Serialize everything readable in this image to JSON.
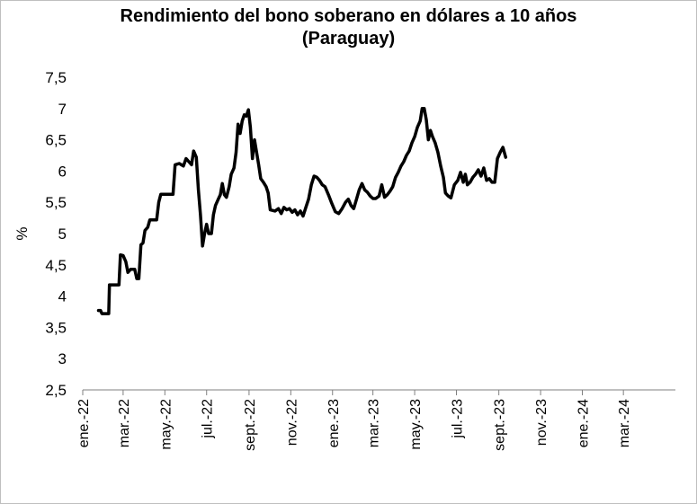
{
  "chart_data": {
    "type": "line",
    "title": "Rendimiento del bono soberano en dólares a 10 años",
    "subtitle": "(Paraguay)",
    "xlabel": "",
    "ylabel": "%",
    "ylim": [
      2.5,
      7.5
    ],
    "yticks": [
      "2,5",
      "3",
      "3,5",
      "4",
      "4,5",
      "5",
      "5,5",
      "6",
      "6,5",
      "7",
      "7,5"
    ],
    "xlim": [
      "2022-01-01",
      "2024-05-16"
    ],
    "xticks": [
      {
        "date": "2022-01-01",
        "label": "ene.-22"
      },
      {
        "date": "2022-03-01",
        "label": "mar.-22"
      },
      {
        "date": "2022-05-01",
        "label": "may.-22"
      },
      {
        "date": "2022-07-01",
        "label": "jul.-22"
      },
      {
        "date": "2022-09-01",
        "label": "sept.-22"
      },
      {
        "date": "2022-11-01",
        "label": "nov.-22"
      },
      {
        "date": "2023-01-01",
        "label": "ene.-23"
      },
      {
        "date": "2023-03-01",
        "label": "mar.-23"
      },
      {
        "date": "2023-05-01",
        "label": "may.-23"
      },
      {
        "date": "2023-07-01",
        "label": "jul.-23"
      },
      {
        "date": "2023-09-01",
        "label": "sept.-23"
      },
      {
        "date": "2023-11-01",
        "label": "nov.-23"
      },
      {
        "date": "2024-01-01",
        "label": "ene.-24"
      },
      {
        "date": "2024-03-01",
        "label": "mar.-24"
      }
    ],
    "grid": false,
    "legend": "none",
    "series": [
      {
        "color": "#000000",
        "points": [
          [
            "2022-01-24",
            3.77
          ],
          [
            "2022-01-27",
            3.77
          ],
          [
            "2022-01-29",
            3.72
          ],
          [
            "2022-02-08",
            3.72
          ],
          [
            "2022-02-09",
            4.18
          ],
          [
            "2022-02-23",
            4.18
          ],
          [
            "2022-02-25",
            4.66
          ],
          [
            "2022-03-01",
            4.65
          ],
          [
            "2022-03-05",
            4.55
          ],
          [
            "2022-03-08",
            4.38
          ],
          [
            "2022-03-12",
            4.43
          ],
          [
            "2022-03-18",
            4.43
          ],
          [
            "2022-03-21",
            4.28
          ],
          [
            "2022-03-24",
            4.28
          ],
          [
            "2022-03-27",
            4.82
          ],
          [
            "2022-03-30",
            4.85
          ],
          [
            "2022-04-02",
            5.05
          ],
          [
            "2022-04-06",
            5.1
          ],
          [
            "2022-04-09",
            5.22
          ],
          [
            "2022-04-19",
            5.22
          ],
          [
            "2022-04-22",
            5.5
          ],
          [
            "2022-04-25",
            5.63
          ],
          [
            "2022-05-13",
            5.63
          ],
          [
            "2022-05-16",
            6.1
          ],
          [
            "2022-05-22",
            6.12
          ],
          [
            "2022-05-28",
            6.08
          ],
          [
            "2022-06-01",
            6.2
          ],
          [
            "2022-06-05",
            6.15
          ],
          [
            "2022-06-09",
            6.1
          ],
          [
            "2022-06-12",
            6.32
          ],
          [
            "2022-06-16",
            6.22
          ],
          [
            "2022-06-19",
            5.7
          ],
          [
            "2022-06-22",
            5.3
          ],
          [
            "2022-06-25",
            4.8
          ],
          [
            "2022-06-28",
            5.0
          ],
          [
            "2022-07-01",
            5.15
          ],
          [
            "2022-07-04",
            5.0
          ],
          [
            "2022-07-08",
            5.0
          ],
          [
            "2022-07-11",
            5.3
          ],
          [
            "2022-07-14",
            5.45
          ],
          [
            "2022-07-18",
            5.55
          ],
          [
            "2022-07-21",
            5.62
          ],
          [
            "2022-07-24",
            5.8
          ],
          [
            "2022-07-27",
            5.62
          ],
          [
            "2022-07-30",
            5.58
          ],
          [
            "2022-08-03",
            5.75
          ],
          [
            "2022-08-06",
            5.95
          ],
          [
            "2022-08-10",
            6.05
          ],
          [
            "2022-08-13",
            6.3
          ],
          [
            "2022-08-16",
            6.75
          ],
          [
            "2022-08-19",
            6.6
          ],
          [
            "2022-08-22",
            6.8
          ],
          [
            "2022-08-25",
            6.9
          ],
          [
            "2022-08-28",
            6.88
          ],
          [
            "2022-08-31",
            6.98
          ],
          [
            "2022-09-03",
            6.7
          ],
          [
            "2022-09-06",
            6.2
          ],
          [
            "2022-09-09",
            6.5
          ],
          [
            "2022-09-12",
            6.3
          ],
          [
            "2022-09-15",
            6.1
          ],
          [
            "2022-09-18",
            5.88
          ],
          [
            "2022-09-22",
            5.82
          ],
          [
            "2022-09-26",
            5.75
          ],
          [
            "2022-09-29",
            5.65
          ],
          [
            "2022-10-02",
            5.38
          ],
          [
            "2022-10-09",
            5.36
          ],
          [
            "2022-10-14",
            5.4
          ],
          [
            "2022-10-18",
            5.32
          ],
          [
            "2022-10-22",
            5.42
          ],
          [
            "2022-10-26",
            5.38
          ],
          [
            "2022-10-30",
            5.4
          ],
          [
            "2022-11-03",
            5.34
          ],
          [
            "2022-11-07",
            5.38
          ],
          [
            "2022-11-11",
            5.3
          ],
          [
            "2022-11-15",
            5.36
          ],
          [
            "2022-11-19",
            5.28
          ],
          [
            "2022-11-23",
            5.42
          ],
          [
            "2022-11-27",
            5.55
          ],
          [
            "2022-12-01",
            5.78
          ],
          [
            "2022-12-05",
            5.92
          ],
          [
            "2022-12-09",
            5.9
          ],
          [
            "2022-12-13",
            5.85
          ],
          [
            "2022-12-17",
            5.78
          ],
          [
            "2022-12-21",
            5.75
          ],
          [
            "2022-12-26",
            5.62
          ],
          [
            "2022-12-31",
            5.48
          ],
          [
            "2023-01-05",
            5.35
          ],
          [
            "2023-01-10",
            5.32
          ],
          [
            "2023-01-15",
            5.4
          ],
          [
            "2023-01-20",
            5.5
          ],
          [
            "2023-01-24",
            5.55
          ],
          [
            "2023-01-28",
            5.45
          ],
          [
            "2023-02-01",
            5.4
          ],
          [
            "2023-02-05",
            5.55
          ],
          [
            "2023-02-09",
            5.7
          ],
          [
            "2023-02-13",
            5.8
          ],
          [
            "2023-02-17",
            5.7
          ],
          [
            "2023-02-21",
            5.66
          ],
          [
            "2023-02-25",
            5.6
          ],
          [
            "2023-03-01",
            5.56
          ],
          [
            "2023-03-05",
            5.56
          ],
          [
            "2023-03-10",
            5.6
          ],
          [
            "2023-03-14",
            5.78
          ],
          [
            "2023-03-18",
            5.58
          ],
          [
            "2023-03-22",
            5.62
          ],
          [
            "2023-03-26",
            5.68
          ],
          [
            "2023-03-30",
            5.75
          ],
          [
            "2023-04-03",
            5.9
          ],
          [
            "2023-04-07",
            5.98
          ],
          [
            "2023-04-11",
            6.08
          ],
          [
            "2023-04-15",
            6.15
          ],
          [
            "2023-04-19",
            6.25
          ],
          [
            "2023-04-23",
            6.32
          ],
          [
            "2023-04-27",
            6.45
          ],
          [
            "2023-05-01",
            6.55
          ],
          [
            "2023-05-05",
            6.7
          ],
          [
            "2023-05-09",
            6.8
          ],
          [
            "2023-05-12",
            7.0
          ],
          [
            "2023-05-15",
            7.0
          ],
          [
            "2023-05-18",
            6.82
          ],
          [
            "2023-05-21",
            6.5
          ],
          [
            "2023-05-24",
            6.65
          ],
          [
            "2023-05-27",
            6.55
          ],
          [
            "2023-05-31",
            6.45
          ],
          [
            "2023-06-04",
            6.3
          ],
          [
            "2023-06-08",
            6.08
          ],
          [
            "2023-06-12",
            5.9
          ],
          [
            "2023-06-15",
            5.65
          ],
          [
            "2023-06-19",
            5.6
          ],
          [
            "2023-06-23",
            5.57
          ],
          [
            "2023-06-28",
            5.78
          ],
          [
            "2023-07-03",
            5.85
          ],
          [
            "2023-07-07",
            5.98
          ],
          [
            "2023-07-11",
            5.82
          ],
          [
            "2023-07-14",
            5.95
          ],
          [
            "2023-07-17",
            5.78
          ],
          [
            "2023-07-21",
            5.82
          ],
          [
            "2023-07-25",
            5.9
          ],
          [
            "2023-07-29",
            5.95
          ],
          [
            "2023-08-02",
            6.02
          ],
          [
            "2023-08-06",
            5.92
          ],
          [
            "2023-08-10",
            6.05
          ],
          [
            "2023-08-14",
            5.85
          ],
          [
            "2023-08-18",
            5.88
          ],
          [
            "2023-08-22",
            5.82
          ],
          [
            "2023-08-26",
            5.82
          ],
          [
            "2023-08-30",
            6.2
          ],
          [
            "2023-09-03",
            6.3
          ],
          [
            "2023-09-07",
            6.38
          ],
          [
            "2023-09-11",
            6.22
          ]
        ]
      }
    ]
  }
}
